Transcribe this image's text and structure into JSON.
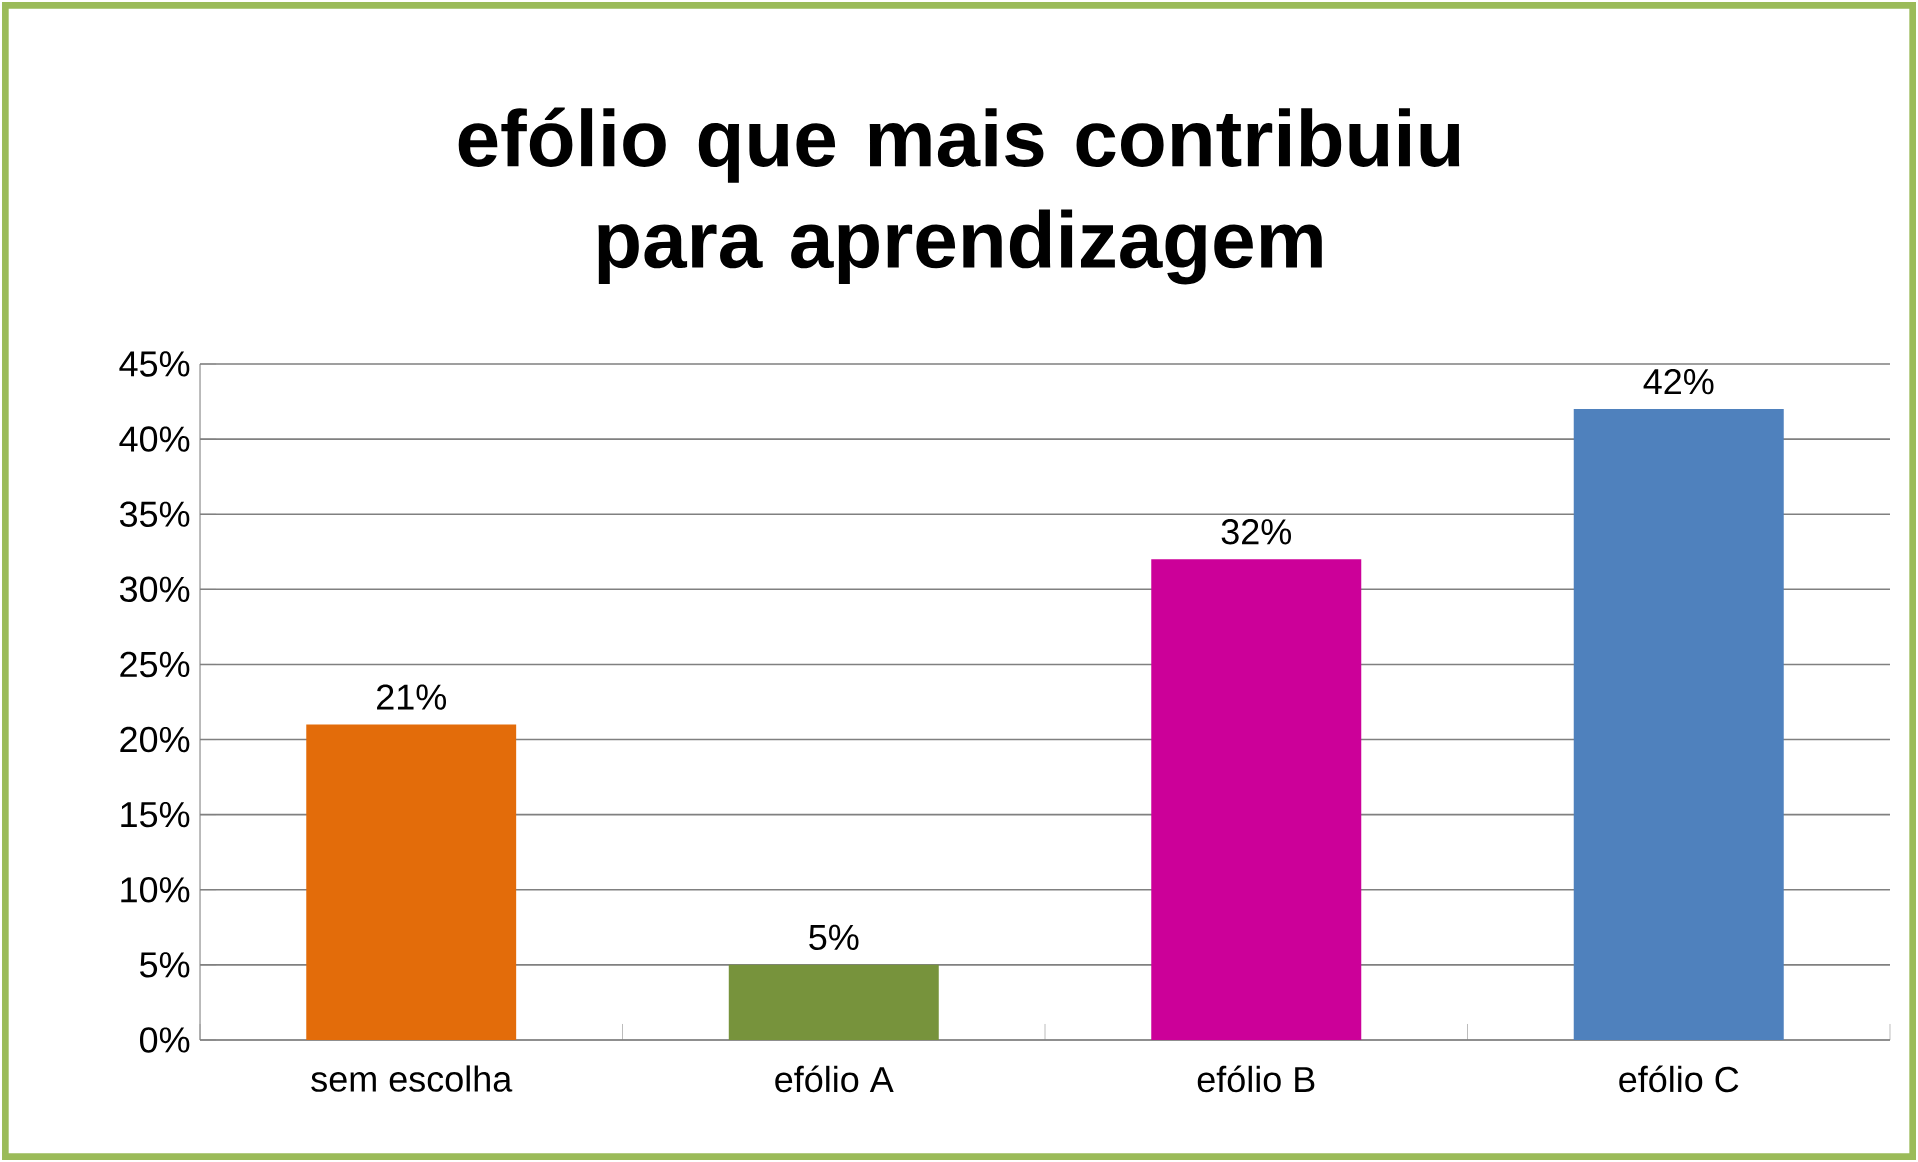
{
  "chart_data": {
    "type": "bar",
    "title": "efólio que mais contribuiu para aprendizagem",
    "categories": [
      "sem escolha",
      "efólio A",
      "efólio B",
      "efólio C"
    ],
    "values": [
      21,
      5,
      32,
      42
    ],
    "value_labels": [
      "21%",
      "5%",
      "32%",
      "42%"
    ],
    "colors": [
      "#e36c0a",
      "#77933c",
      "#cc0099",
      "#4f81bd"
    ],
    "ylim": [
      0,
      45
    ],
    "yticks": [
      {
        "value": 0,
        "label": "0%"
      },
      {
        "value": 5,
        "label": "5%"
      },
      {
        "value": 10,
        "label": "10%"
      },
      {
        "value": 15,
        "label": "15%"
      },
      {
        "value": 20,
        "label": "20%"
      },
      {
        "value": 25,
        "label": "25%"
      },
      {
        "value": 30,
        "label": "30%"
      },
      {
        "value": 35,
        "label": "35%"
      },
      {
        "value": 40,
        "label": "40%"
      },
      {
        "value": 45,
        "label": "45%"
      }
    ],
    "grid": "y"
  }
}
